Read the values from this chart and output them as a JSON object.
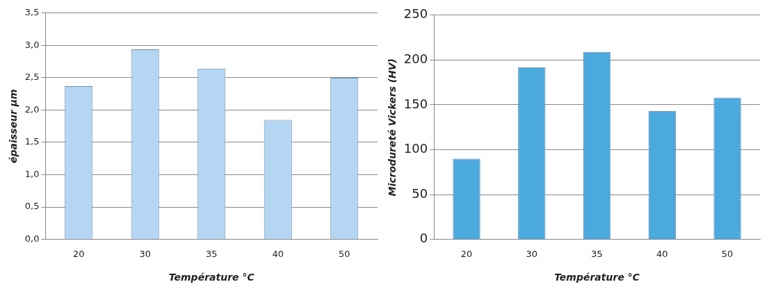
{
  "chart_data": [
    {
      "type": "bar",
      "xlabel": "Température °C",
      "ylabel": "épaisseur µm",
      "categories": [
        "20",
        "30",
        "35",
        "40",
        "50"
      ],
      "values": [
        2.37,
        2.94,
        2.64,
        1.85,
        2.5
      ],
      "color": "#b4d6f2",
      "ylim": [
        0,
        3.5
      ],
      "yticks": [
        {
          "value": 0,
          "label": "0,0"
        },
        {
          "value": 0.5,
          "label": "0,5"
        },
        {
          "value": 1,
          "label": "1,0"
        },
        {
          "value": 1.5,
          "label": "1,5"
        },
        {
          "value": 2,
          "label": "2,0"
        },
        {
          "value": 2.5,
          "label": "2,5"
        },
        {
          "value": 3,
          "label": "3,0"
        },
        {
          "value": 3.5,
          "label": "3,5"
        }
      ],
      "grid": "y",
      "legend": false
    },
    {
      "type": "bar",
      "xlabel": "Température °C",
      "ylabel": "Microdureté Vickers (HV)",
      "categories": [
        "20",
        "30",
        "35",
        "40",
        "50"
      ],
      "values": [
        90,
        192,
        209,
        143,
        158
      ],
      "color": "#4aaade",
      "ylim": [
        0,
        250
      ],
      "yticks": [
        0,
        50,
        100,
        150,
        200,
        250
      ],
      "grid": "y",
      "legend": false
    }
  ]
}
